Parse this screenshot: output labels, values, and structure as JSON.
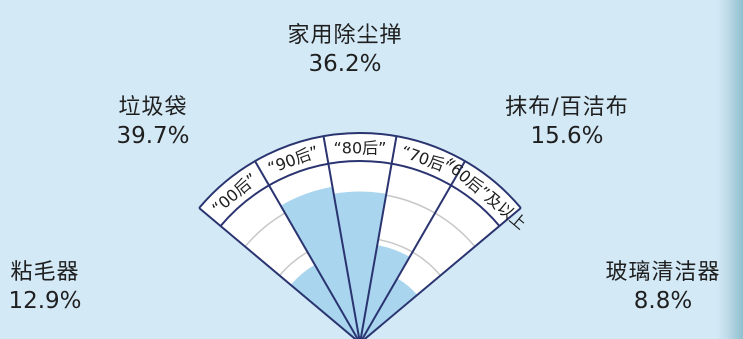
{
  "chart_data": {
    "type": "polar-area",
    "wedges": [
      {
        "generation": "“00后”",
        "category": "粘毛器",
        "value": 12.9,
        "value_label": "12.9%"
      },
      {
        "generation": "“90后”",
        "category": "垃圾袋",
        "value": 39.7,
        "value_label": "39.7%"
      },
      {
        "generation": "“80后”",
        "category": "家用除尘掸",
        "value": 36.2,
        "value_label": "36.2%"
      },
      {
        "generation": "“70后”",
        "category": "抹布/百洁布",
        "value": 15.6,
        "value_label": "15.6%"
      },
      {
        "generation": "“60后”及以上",
        "category": "玻璃清洁器",
        "value": 8.8,
        "value_label": "8.8%"
      }
    ],
    "rmax": 50
  },
  "colors": {
    "background": "#d3e9f6",
    "fill": "#a9d6ee",
    "band": "#ffffff",
    "lines": "#2a3470",
    "rings": "#c8c8c8"
  }
}
